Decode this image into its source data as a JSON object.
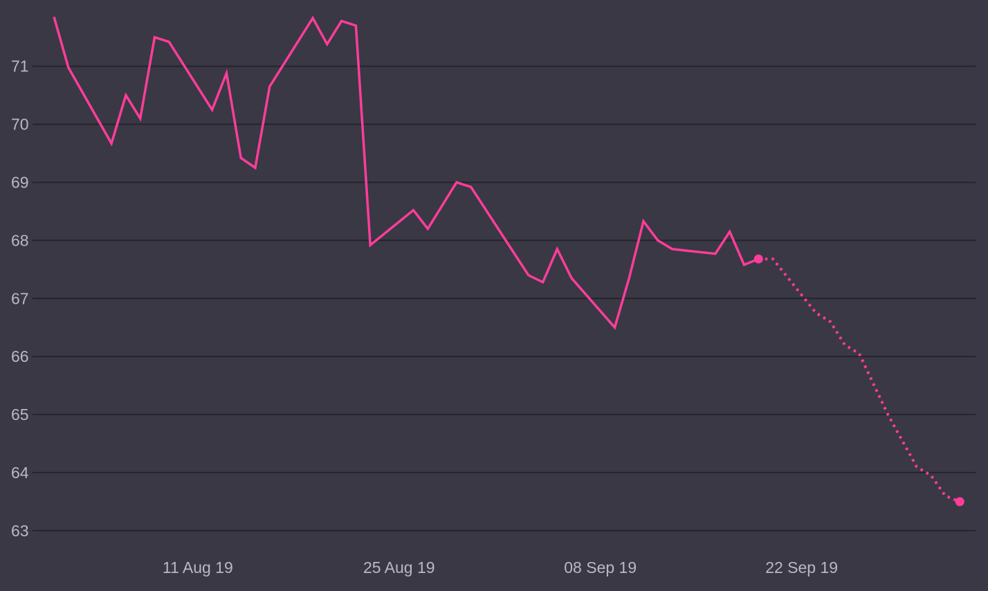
{
  "chart_data": {
    "type": "line",
    "title": "",
    "xlabel": "",
    "ylabel": "",
    "x_ticks": [
      "2019-08-11",
      "2019-08-25",
      "2019-09-08",
      "2019-09-22"
    ],
    "x_tick_labels": [
      "11 Aug 19",
      "25 Aug 19",
      "08 Sep 19",
      "22 Sep 19"
    ],
    "y_ticks": [
      63,
      64,
      65,
      66,
      67,
      68,
      69,
      70,
      71
    ],
    "y_tick_labels": [
      "63",
      "64",
      "65",
      "66",
      "67",
      "68",
      "69",
      "70",
      "71"
    ],
    "ylim": [
      62.95,
      71.95
    ],
    "xlim": [
      "2019-08-01",
      "2019-10-04"
    ],
    "grid": true,
    "legend": "none",
    "series": [
      {
        "style": "solid",
        "color": "#ff3d9a",
        "points": [
          [
            "2019-08-01",
            71.85
          ],
          [
            "2019-08-02",
            70.98
          ],
          [
            "2019-08-05",
            69.67
          ],
          [
            "2019-08-06",
            70.5
          ],
          [
            "2019-08-07",
            70.1
          ],
          [
            "2019-08-08",
            71.5
          ],
          [
            "2019-08-09",
            71.42
          ],
          [
            "2019-08-12",
            70.25
          ],
          [
            "2019-08-13",
            70.88
          ],
          [
            "2019-08-14",
            69.42
          ],
          [
            "2019-08-15",
            69.25
          ],
          [
            "2019-08-16",
            70.65
          ],
          [
            "2019-08-19",
            71.83
          ],
          [
            "2019-08-20",
            71.38
          ],
          [
            "2019-08-21",
            71.78
          ],
          [
            "2019-08-22",
            71.7
          ],
          [
            "2019-08-23",
            67.92
          ],
          [
            "2019-08-26",
            68.52
          ],
          [
            "2019-08-27",
            68.2
          ],
          [
            "2019-08-29",
            69.0
          ],
          [
            "2019-08-30",
            68.92
          ],
          [
            "2019-09-03",
            67.4
          ],
          [
            "2019-09-04",
            67.28
          ],
          [
            "2019-09-05",
            67.85
          ],
          [
            "2019-09-06",
            67.35
          ],
          [
            "2019-09-09",
            66.5
          ],
          [
            "2019-09-10",
            67.35
          ],
          [
            "2019-09-11",
            68.33
          ],
          [
            "2019-09-12",
            68.0
          ],
          [
            "2019-09-13",
            67.85
          ],
          [
            "2019-09-16",
            67.77
          ],
          [
            "2019-09-17",
            68.15
          ],
          [
            "2019-09-18",
            67.58
          ],
          [
            "2019-09-19",
            67.68
          ]
        ]
      },
      {
        "style": "dotted",
        "color": "#ff3d9a",
        "points": [
          [
            "2019-09-19",
            67.68
          ],
          [
            "2019-09-20",
            67.68
          ],
          [
            "2019-09-23",
            66.75
          ],
          [
            "2019-09-24",
            66.6
          ],
          [
            "2019-09-25",
            66.2
          ],
          [
            "2019-09-26",
            66.05
          ],
          [
            "2019-09-28",
            65.0
          ],
          [
            "2019-09-30",
            64.1
          ],
          [
            "2019-10-01",
            63.95
          ],
          [
            "2019-10-02",
            63.6
          ],
          [
            "2019-10-03",
            63.5
          ]
        ]
      }
    ],
    "markers": [
      [
        "2019-09-19",
        67.68
      ],
      [
        "2019-10-03",
        63.5
      ]
    ]
  }
}
